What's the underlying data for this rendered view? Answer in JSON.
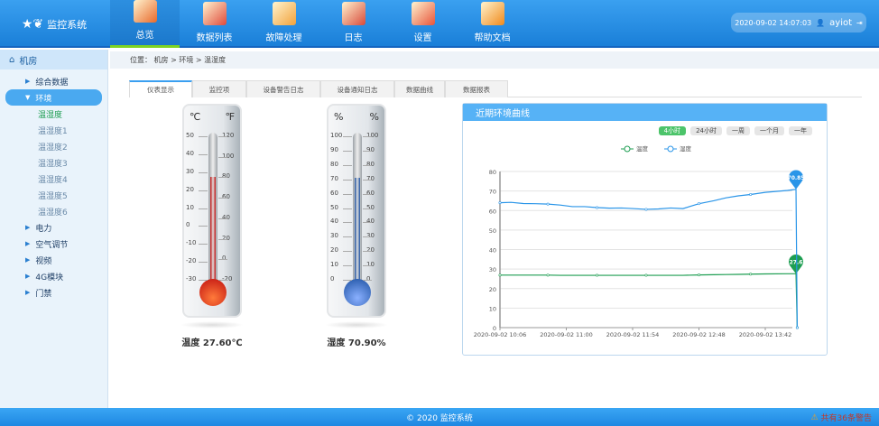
{
  "app": {
    "title": "监控系统"
  },
  "nav": [
    {
      "label": "总览",
      "icon": "books-icon",
      "color": "#e8692a",
      "active": true
    },
    {
      "label": "数据列表",
      "icon": "data-list-icon",
      "color": "#e04a3a"
    },
    {
      "label": "故障处理",
      "icon": "warning-note-icon",
      "color": "#f2a23a"
    },
    {
      "label": "日志",
      "icon": "calendar-icon",
      "color": "#d84a3a"
    },
    {
      "label": "设置",
      "icon": "gear-icon",
      "color": "#e8543a"
    },
    {
      "label": "帮助文档",
      "icon": "help-doc-icon",
      "color": "#f08a1a"
    }
  ],
  "user": {
    "datetime": "2020-09-02  14:07:03",
    "name": "ayiot"
  },
  "sidebar": {
    "root": "机房",
    "items": [
      {
        "label": "综合数据",
        "open": false
      },
      {
        "label": "环境",
        "open": true,
        "children": [
          "温湿度",
          "温湿度1",
          "温湿度2",
          "温湿度3",
          "温湿度4",
          "温湿度5",
          "温湿度6"
        ]
      },
      {
        "label": "电力"
      },
      {
        "label": "空气调节"
      },
      {
        "label": "视频"
      },
      {
        "label": "4G模块"
      },
      {
        "label": "门禁"
      }
    ]
  },
  "breadcrumb": "位置： 机房 > 环境 > 温湿度",
  "tabs": [
    "仪表显示",
    "监控项",
    "设备警告日志",
    "设备通知日志",
    "数据曲线",
    "数据报表"
  ],
  "gauges": {
    "temperature": {
      "unit_left": "℃",
      "unit_right": "℉",
      "left_ticks": [
        "50",
        "40",
        "30",
        "20",
        "10",
        "0",
        "-10",
        "-20",
        "-30"
      ],
      "right_ticks": [
        "120",
        "100",
        "80",
        "60",
        "40",
        "20",
        "0",
        "-20"
      ],
      "value": 27.6,
      "min": -30,
      "max": 50,
      "reading": "温度  27.60℃",
      "color": "#c01010"
    },
    "humidity": {
      "unit_left": "%",
      "unit_right": "%",
      "left_ticks": [
        "100",
        "90",
        "80",
        "70",
        "60",
        "50",
        "40",
        "30",
        "20",
        "10",
        "0"
      ],
      "right_ticks": [
        "100",
        "90",
        "80",
        "70",
        "60",
        "50",
        "40",
        "30",
        "20",
        "10",
        "0"
      ],
      "value": 70.9,
      "min": 0,
      "max": 100,
      "reading": "湿度  70.90%",
      "color": "#1a5fb0"
    }
  },
  "chart_panel": {
    "title": "近期环境曲线",
    "ranges": [
      "4小时",
      "24小时",
      "一周",
      "一个月",
      "一年"
    ],
    "active_range": "4小时"
  },
  "chart_data": {
    "type": "line",
    "legend": [
      "温度",
      "湿度"
    ],
    "legend_position": "top-center",
    "x_ticks": [
      "2020-09-02 10:06",
      "2020-09-02 11:00",
      "2020-09-02 11:54",
      "2020-09-02 12:48",
      "2020-09-02 13:42"
    ],
    "y_ticks": [
      "0",
      "10",
      "20",
      "30",
      "40",
      "50",
      "60",
      "70",
      "80"
    ],
    "ylim": [
      0,
      80
    ],
    "grid": true,
    "x": [
      "10:06",
      "10:15",
      "10:25",
      "10:35",
      "10:45",
      "10:55",
      "11:05",
      "11:15",
      "11:25",
      "11:35",
      "11:45",
      "11:54",
      "12:05",
      "12:15",
      "12:25",
      "12:35",
      "12:48",
      "13:00",
      "13:10",
      "13:20",
      "13:30",
      "13:42",
      "14:00",
      "14:07",
      "14:08"
    ],
    "series": [
      {
        "name": "温度",
        "color": "#1e9e52",
        "values": [
          26.9,
          26.9,
          26.9,
          26.9,
          26.9,
          26.8,
          26.8,
          26.8,
          26.8,
          26.8,
          26.8,
          26.8,
          26.8,
          26.8,
          26.8,
          26.8,
          27.0,
          27.1,
          27.2,
          27.3,
          27.4,
          27.5,
          27.6,
          27.6,
          0
        ],
        "end_label": "27.6"
      },
      {
        "name": "湿度",
        "color": "#2a95e8",
        "values": [
          64.0,
          64.2,
          63.6,
          63.5,
          63.3,
          62.8,
          62.0,
          62.0,
          61.5,
          61.2,
          61.3,
          61.0,
          60.6,
          60.8,
          61.3,
          61.0,
          63.5,
          65.0,
          66.5,
          67.5,
          68.2,
          69.3,
          70.3,
          70.85,
          0
        ],
        "end_label": "70.85"
      }
    ]
  },
  "footer": {
    "copyright": "© 2020  监控系统",
    "alarm": "共有36条警告"
  }
}
